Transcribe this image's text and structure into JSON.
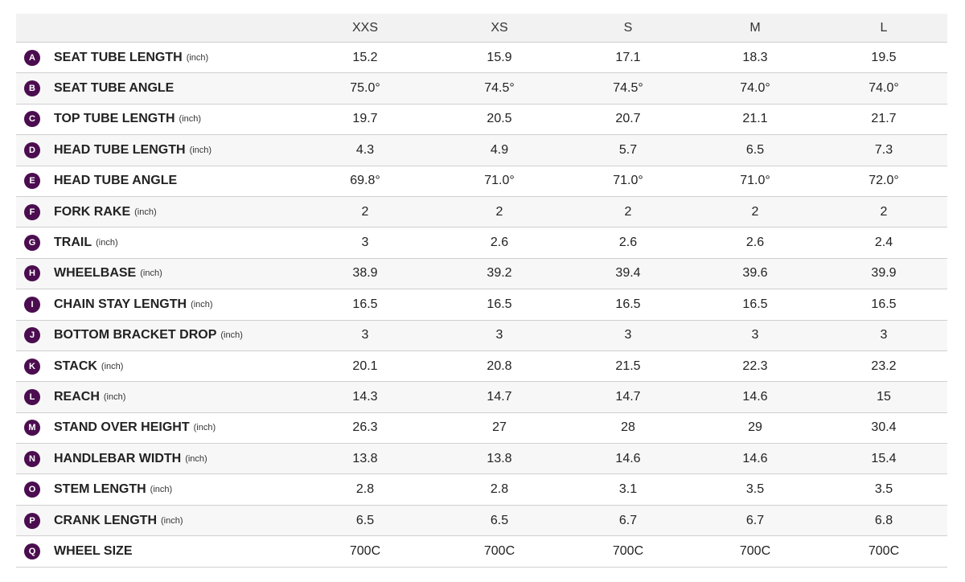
{
  "table": {
    "columns": [
      "XXS",
      "XS",
      "S",
      "M",
      "L"
    ],
    "rows": [
      {
        "letter": "A",
        "name": "SEAT TUBE LENGTH",
        "unit": "(inch)",
        "values": [
          "15.2",
          "15.9",
          "17.1",
          "18.3",
          "19.5"
        ]
      },
      {
        "letter": "B",
        "name": "SEAT TUBE ANGLE",
        "values": [
          "75.0°",
          "74.5°",
          "74.5°",
          "74.0°",
          "74.0°"
        ]
      },
      {
        "letter": "C",
        "name": "TOP TUBE LENGTH",
        "unit": "(inch)",
        "values": [
          "19.7",
          "20.5",
          "20.7",
          "21.1",
          "21.7"
        ]
      },
      {
        "letter": "D",
        "name": "HEAD TUBE LENGTH",
        "unit": "(inch)",
        "values": [
          "4.3",
          "4.9",
          "5.7",
          "6.5",
          "7.3"
        ]
      },
      {
        "letter": "E",
        "name": "HEAD TUBE ANGLE",
        "values": [
          "69.8°",
          "71.0°",
          "71.0°",
          "71.0°",
          "72.0°"
        ]
      },
      {
        "letter": "F",
        "name": "FORK RAKE",
        "unit": "(inch)",
        "values": [
          "2",
          "2",
          "2",
          "2",
          "2"
        ]
      },
      {
        "letter": "G",
        "name": "TRAIL",
        "unit": "(inch)",
        "values": [
          "3",
          "2.6",
          "2.6",
          "2.6",
          "2.4"
        ]
      },
      {
        "letter": "H",
        "name": "WHEELBASE",
        "unit": "(inch)",
        "values": [
          "38.9",
          "39.2",
          "39.4",
          "39.6",
          "39.9"
        ]
      },
      {
        "letter": "I",
        "name": "CHAIN STAY LENGTH",
        "unit": "(inch)",
        "values": [
          "16.5",
          "16.5",
          "16.5",
          "16.5",
          "16.5"
        ]
      },
      {
        "letter": "J",
        "name": "BOTTOM BRACKET DROP",
        "unit": "(inch)",
        "values": [
          "3",
          "3",
          "3",
          "3",
          "3"
        ]
      },
      {
        "letter": "K",
        "name": "STACK",
        "unit": "(inch)",
        "values": [
          "20.1",
          "20.8",
          "21.5",
          "22.3",
          "23.2"
        ]
      },
      {
        "letter": "L",
        "name": "REACH",
        "unit": "(inch)",
        "values": [
          "14.3",
          "14.7",
          "14.7",
          "14.6",
          "15"
        ]
      },
      {
        "letter": "M",
        "name": "STAND OVER HEIGHT",
        "unit": "(inch)",
        "values": [
          "26.3",
          "27",
          "28",
          "29",
          "30.4"
        ]
      },
      {
        "letter": "N",
        "name": "HANDLEBAR WIDTH",
        "unit": "(inch)",
        "values": [
          "13.8",
          "13.8",
          "14.6",
          "14.6",
          "15.4"
        ]
      },
      {
        "letter": "O",
        "name": "STEM LENGTH",
        "unit": "(inch)",
        "values": [
          "2.8",
          "2.8",
          "3.1",
          "3.5",
          "3.5"
        ]
      },
      {
        "letter": "P",
        "name": "CRANK LENGTH",
        "unit": "(inch)",
        "values": [
          "6.5",
          "6.5",
          "6.7",
          "6.7",
          "6.8"
        ]
      },
      {
        "letter": "Q",
        "name": "WHEEL SIZE",
        "values": [
          "700C",
          "700C",
          "700C",
          "700C",
          "700C"
        ]
      }
    ]
  }
}
